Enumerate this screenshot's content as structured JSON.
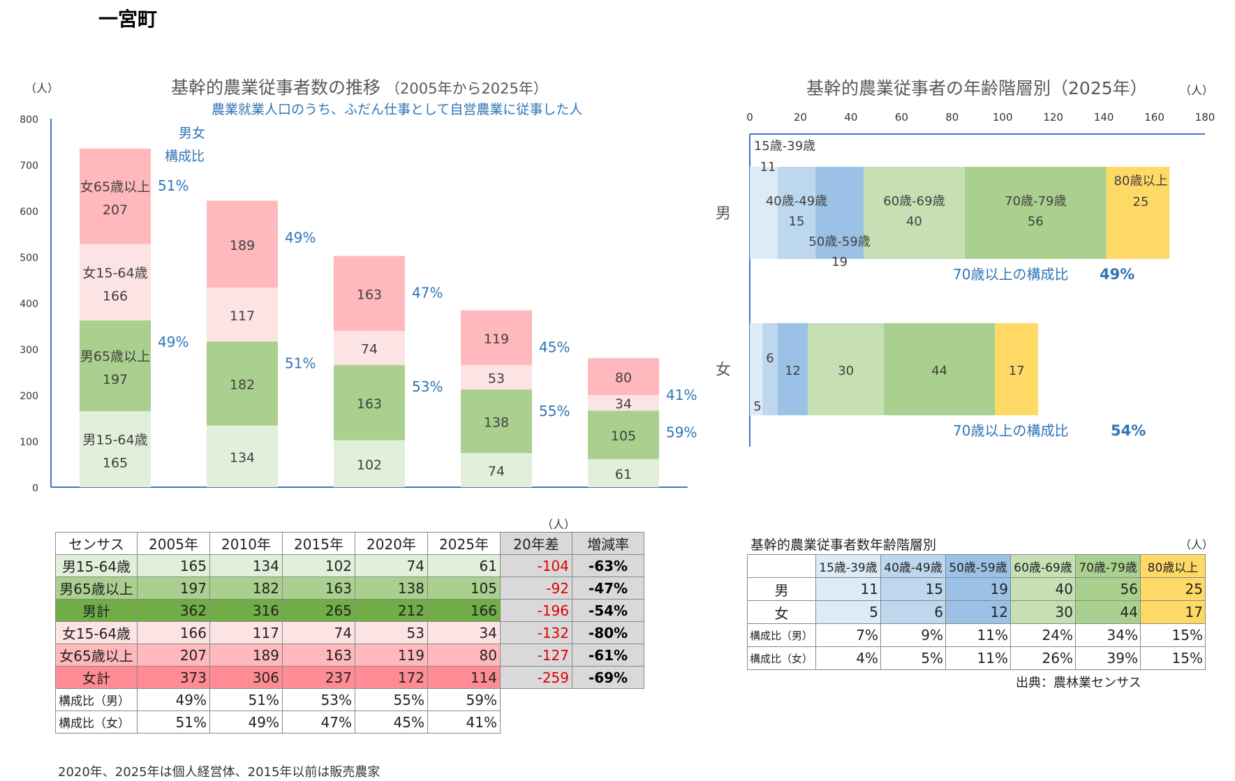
{
  "page_title": "一宮町",
  "note": "2020年、2025年は個人経営体、2015年以前は販売農家",
  "source": "出典：農林業センサス",
  "colors": {
    "male_15_64": "#e2efda",
    "male_65": "#a9d08e",
    "male_total": "#70ad47",
    "female_15_64": "#fde4e4",
    "female_65": "#ffb9bd",
    "female_total": "#ff8c94",
    "age_15_39": "#ddebf7",
    "age_40_49": "#bdd7ee",
    "age_50_59": "#9bc2e6",
    "age_60_69": "#c6e0b4",
    "age_70_79": "#a9d08e",
    "age_80": "#ffd966",
    "gray": "#d9d9d9",
    "accent_blue": "#2e75b6",
    "negative_red": "#e00000"
  },
  "chart_data": [
    {
      "type": "bar",
      "stacked": true,
      "title": "基幹的農業従事者数の推移",
      "title_sub": "（2005年から2025年）",
      "subtitle": "農業就業人口のうち、ふだん仕事として自営農業に従事した人",
      "ylabel": "（人）",
      "ylim": [
        0,
        800
      ],
      "yticks": [
        0,
        100,
        200,
        300,
        400,
        500,
        600,
        700,
        800
      ],
      "legend_note": [
        "男女",
        "構成比"
      ],
      "categories": [
        "2005年",
        "2010年",
        "2015年",
        "2020年",
        "2025年"
      ],
      "series": [
        {
          "name": "男15-64歳",
          "values": [
            165,
            134,
            102,
            74,
            61
          ]
        },
        {
          "name": "男65歳以上",
          "values": [
            197,
            182,
            163,
            138,
            105
          ]
        },
        {
          "name": "女15-64歳",
          "values": [
            166,
            117,
            74,
            53,
            34
          ]
        },
        {
          "name": "女65歳以上",
          "values": [
            207,
            189,
            163,
            119,
            80
          ]
        }
      ],
      "in_bar_names": [
        "男15-64歳",
        "男65歳以上",
        "女15-64歳",
        "女65歳以上"
      ],
      "ratio_male": [
        "49%",
        "51%",
        "53%",
        "55%",
        "59%"
      ],
      "ratio_female": [
        "51%",
        "49%",
        "47%",
        "45%",
        "41%"
      ]
    },
    {
      "type": "bar",
      "orientation": "horizontal",
      "stacked": true,
      "title": "基幹的農業従事者の年齢階層別（2025年）",
      "unit": "（人）",
      "xlim": [
        0,
        180
      ],
      "xticks": [
        0,
        20,
        40,
        60,
        80,
        100,
        120,
        140,
        160,
        180
      ],
      "categories": [
        "男",
        "女"
      ],
      "series": [
        {
          "name": "15歳-39歳",
          "values": [
            11,
            5
          ]
        },
        {
          "name": "40歳-49歳",
          "values": [
            15,
            6
          ]
        },
        {
          "name": "50歳-59歳",
          "values": [
            19,
            12
          ]
        },
        {
          "name": "60歳-69歳",
          "values": [
            40,
            30
          ]
        },
        {
          "name": "70歳-79歳",
          "values": [
            56,
            44
          ]
        },
        {
          "name": "80歳以上",
          "values": [
            25,
            17
          ]
        }
      ],
      "over70_label": "70歳以上の構成比",
      "over70_values": [
        "49%",
        "54%"
      ]
    }
  ],
  "table1": {
    "unit": "（人）",
    "header": [
      "センサス",
      "2005年",
      "2010年",
      "2015年",
      "2020年",
      "2025年",
      "20年差",
      "増減率"
    ],
    "rows": [
      {
        "label": "男15-64歳",
        "values": [
          "165",
          "134",
          "102",
          "74",
          "61"
        ],
        "diff": "-104",
        "rate": "-63%",
        "style": "male_15_64"
      },
      {
        "label": "男65歳以上",
        "values": [
          "197",
          "182",
          "163",
          "138",
          "105"
        ],
        "diff": "-92",
        "rate": "-47%",
        "style": "male_65"
      },
      {
        "label": "男計",
        "values": [
          "362",
          "316",
          "265",
          "212",
          "166"
        ],
        "diff": "-196",
        "rate": "-54%",
        "style": "male_total"
      },
      {
        "label": "女15-64歳",
        "values": [
          "166",
          "117",
          "74",
          "53",
          "34"
        ],
        "diff": "-132",
        "rate": "-80%",
        "style": "female_15_64"
      },
      {
        "label": "女65歳以上",
        "values": [
          "207",
          "189",
          "163",
          "119",
          "80"
        ],
        "diff": "-127",
        "rate": "-61%",
        "style": "female_65"
      },
      {
        "label": "女計",
        "values": [
          "373",
          "306",
          "237",
          "172",
          "114"
        ],
        "diff": "-259",
        "rate": "-69%",
        "style": "female_total"
      }
    ],
    "ratio_rows": [
      {
        "label": "構成比（男）",
        "values": [
          "49%",
          "51%",
          "53%",
          "55%",
          "59%"
        ]
      },
      {
        "label": "構成比（女）",
        "values": [
          "51%",
          "49%",
          "47%",
          "45%",
          "41%"
        ]
      }
    ]
  },
  "table2": {
    "title": "基幹的農業従事者数年齢階層別",
    "unit": "（人）",
    "header": [
      "",
      "15歳-39歳",
      "40歳-49歳",
      "50歳-59歳",
      "60歳-69歳",
      "70歳-79歳",
      "80歳以上"
    ],
    "rows": [
      {
        "label": "男",
        "values": [
          "11",
          "15",
          "19",
          "40",
          "56",
          "25"
        ]
      },
      {
        "label": "女",
        "values": [
          "5",
          "6",
          "12",
          "30",
          "44",
          "17"
        ]
      },
      {
        "label": "構成比（男）",
        "values": [
          "7%",
          "9%",
          "11%",
          "24%",
          "34%",
          "15%"
        ]
      },
      {
        "label": "構成比（女）",
        "values": [
          "4%",
          "5%",
          "11%",
          "26%",
          "39%",
          "15%"
        ]
      }
    ]
  }
}
